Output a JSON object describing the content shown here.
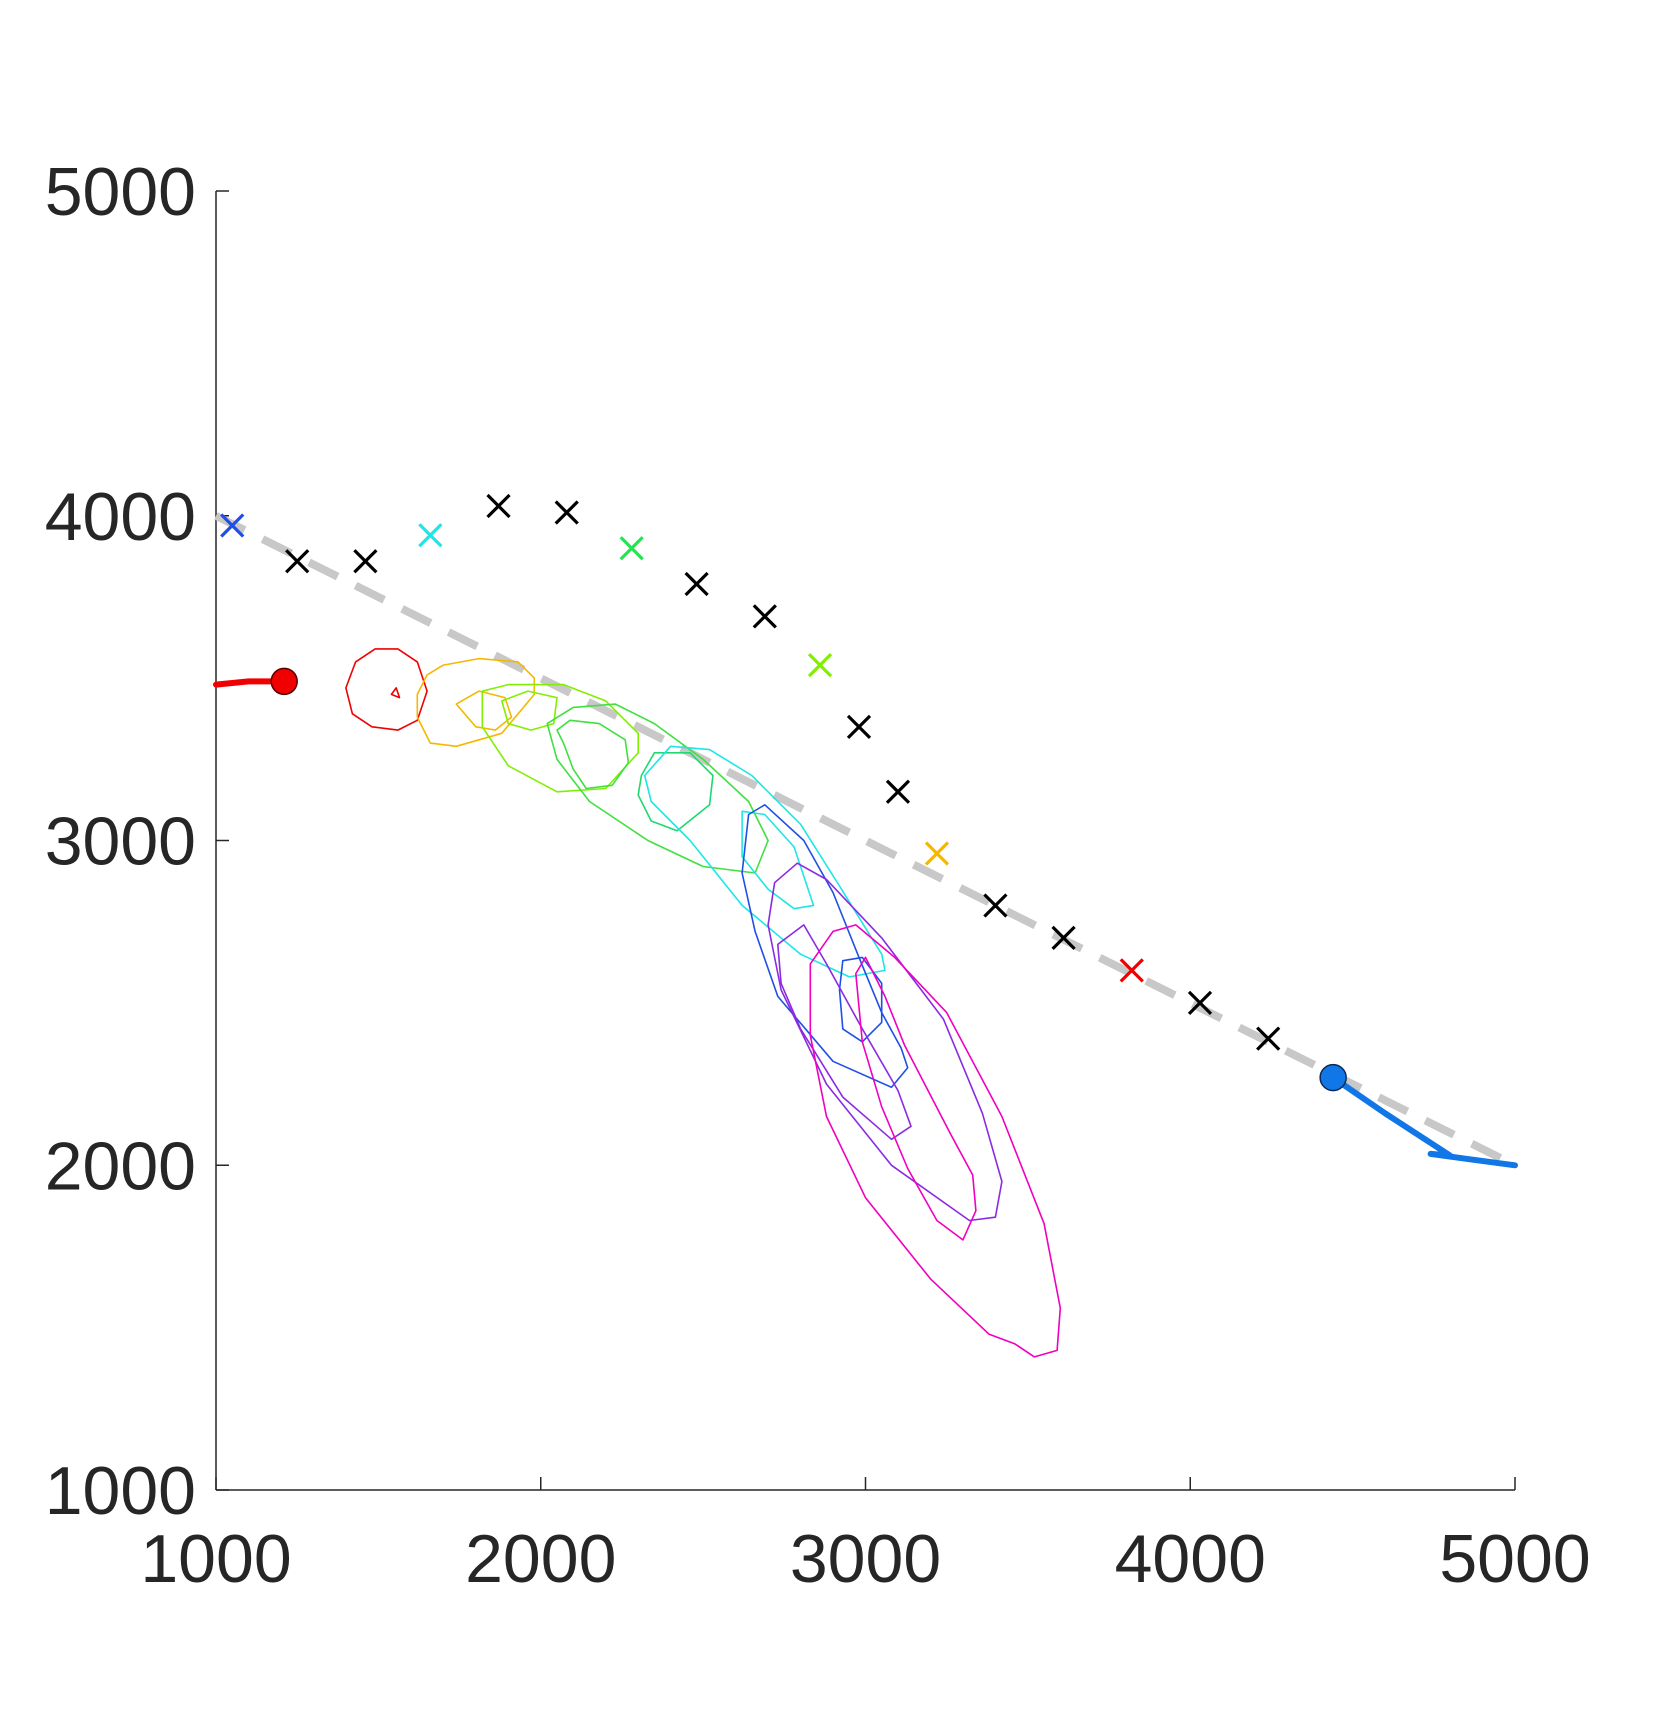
{
  "chart_data": {
    "type": "scatter",
    "title": "",
    "xlabel": "",
    "ylabel": "",
    "xlim": [
      1000,
      5000
    ],
    "ylim": [
      1000,
      5000
    ],
    "x_ticks": [
      "1000",
      "2000",
      "3000",
      "4000",
      "5000"
    ],
    "y_ticks": [
      "1000",
      "2000",
      "3000",
      "4000",
      "5000"
    ],
    "grid": false,
    "legend": "none",
    "reference_line": {
      "color": "#c8c8c8",
      "style": "dashed",
      "points": [
        [
          1000,
          4000
        ],
        [
          5000,
          2000
        ]
      ]
    },
    "observation_markers": [
      {
        "x": 1050,
        "y": 3970,
        "color": "#1f4fe6"
      },
      {
        "x": 1250,
        "y": 3860,
        "color": "#000000"
      },
      {
        "x": 1460,
        "y": 3860,
        "color": "#000000"
      },
      {
        "x": 1660,
        "y": 3940,
        "color": "#1ee6e6"
      },
      {
        "x": 1870,
        "y": 4030,
        "color": "#000000"
      },
      {
        "x": 2080,
        "y": 4010,
        "color": "#000000"
      },
      {
        "x": 2280,
        "y": 3900,
        "color": "#20e650"
      },
      {
        "x": 2480,
        "y": 3790,
        "color": "#000000"
      },
      {
        "x": 2690,
        "y": 3690,
        "color": "#000000"
      },
      {
        "x": 2860,
        "y": 3540,
        "color": "#80f000"
      },
      {
        "x": 2980,
        "y": 3350,
        "color": "#000000"
      },
      {
        "x": 3100,
        "y": 3150,
        "color": "#000000"
      },
      {
        "x": 3220,
        "y": 2960,
        "color": "#f5b800"
      },
      {
        "x": 3400,
        "y": 2800,
        "color": "#000000"
      },
      {
        "x": 3610,
        "y": 2700,
        "color": "#000000"
      },
      {
        "x": 3820,
        "y": 2600,
        "color": "#f00000"
      },
      {
        "x": 4030,
        "y": 2500,
        "color": "#000000"
      },
      {
        "x": 4240,
        "y": 2390,
        "color": "#000000"
      }
    ],
    "red_track": {
      "color": "#f00000",
      "points": [
        [
          1000,
          3480
        ],
        [
          1100,
          3490
        ],
        [
          1210,
          3490
        ]
      ],
      "end_marker": [
        1210,
        3490
      ]
    },
    "blue_track": {
      "color": "#1177e6",
      "points": [
        [
          4440,
          2270
        ],
        [
          4600,
          2160
        ],
        [
          4800,
          2030
        ],
        [
          4740,
          2035
        ],
        [
          4850,
          2020
        ],
        [
          5000,
          2000
        ]
      ],
      "start_marker": [
        4440,
        2270
      ]
    },
    "contours": [
      {
        "color": "#f00000",
        "outer": [
          [
            1430,
            3550
          ],
          [
            1490,
            3590
          ],
          [
            1560,
            3590
          ],
          [
            1620,
            3550
          ],
          [
            1650,
            3460
          ],
          [
            1620,
            3370
          ],
          [
            1560,
            3340
          ],
          [
            1480,
            3350
          ],
          [
            1420,
            3390
          ],
          [
            1400,
            3470
          ]
        ],
        "inner": [
          [
            1540,
            3450
          ],
          [
            1555,
            3470
          ],
          [
            1565,
            3440
          ]
        ]
      },
      {
        "color": "#f5b800",
        "outer": [
          [
            1620,
            3450
          ],
          [
            1650,
            3510
          ],
          [
            1700,
            3540
          ],
          [
            1810,
            3560
          ],
          [
            1930,
            3550
          ],
          [
            1980,
            3500
          ],
          [
            1980,
            3450
          ],
          [
            1880,
            3330
          ],
          [
            1740,
            3290
          ],
          [
            1660,
            3300
          ],
          [
            1620,
            3380
          ]
        ],
        "inner": [
          [
            1740,
            3420
          ],
          [
            1810,
            3460
          ],
          [
            1890,
            3440
          ],
          [
            1910,
            3380
          ],
          [
            1860,
            3340
          ],
          [
            1800,
            3350
          ]
        ]
      },
      {
        "color": "#80f000",
        "outer": [
          [
            1820,
            3460
          ],
          [
            1900,
            3480
          ],
          [
            2070,
            3480
          ],
          [
            2200,
            3430
          ],
          [
            2300,
            3330
          ],
          [
            2300,
            3270
          ],
          [
            2200,
            3160
          ],
          [
            2050,
            3150
          ],
          [
            1900,
            3230
          ],
          [
            1820,
            3350
          ]
        ],
        "inner": [
          [
            1880,
            3430
          ],
          [
            1960,
            3460
          ],
          [
            2050,
            3440
          ],
          [
            2040,
            3360
          ],
          [
            1970,
            3340
          ],
          [
            1900,
            3360
          ]
        ]
      },
      {
        "color": "#40e040",
        "outer": [
          [
            2020,
            3360
          ],
          [
            2100,
            3410
          ],
          [
            2230,
            3420
          ],
          [
            2350,
            3360
          ],
          [
            2500,
            3250
          ],
          [
            2640,
            3120
          ],
          [
            2700,
            3000
          ],
          [
            2660,
            2900
          ],
          [
            2500,
            2920
          ],
          [
            2330,
            3000
          ],
          [
            2150,
            3120
          ],
          [
            2050,
            3250
          ]
        ],
        "inner": [
          [
            2050,
            3340
          ],
          [
            2090,
            3370
          ],
          [
            2180,
            3360
          ],
          [
            2260,
            3310
          ],
          [
            2270,
            3240
          ],
          [
            2220,
            3170
          ],
          [
            2140,
            3160
          ],
          [
            2100,
            3220
          ],
          [
            2070,
            3300
          ]
        ]
      },
      {
        "color": "#20d870",
        "outer": [
          [
            2310,
            3200
          ],
          [
            2350,
            3270
          ],
          [
            2460,
            3270
          ],
          [
            2530,
            3200
          ],
          [
            2520,
            3110
          ],
          [
            2420,
            3030
          ],
          [
            2340,
            3060
          ],
          [
            2300,
            3140
          ]
        ],
        "inner": []
      },
      {
        "color": "#1ee6e6",
        "outer": [
          [
            2320,
            3200
          ],
          [
            2400,
            3290
          ],
          [
            2520,
            3280
          ],
          [
            2650,
            3200
          ],
          [
            2800,
            3050
          ],
          [
            2920,
            2860
          ],
          [
            3050,
            2650
          ],
          [
            3060,
            2600
          ],
          [
            2950,
            2580
          ],
          [
            2800,
            2650
          ],
          [
            2620,
            2800
          ],
          [
            2460,
            3000
          ],
          [
            2340,
            3120
          ]
        ],
        "inner": [
          [
            2620,
            3090
          ],
          [
            2690,
            3080
          ],
          [
            2780,
            2980
          ],
          [
            2840,
            2800
          ],
          [
            2780,
            2790
          ],
          [
            2700,
            2850
          ],
          [
            2620,
            2950
          ]
        ]
      },
      {
        "color": "#1f4fe6",
        "outer": [
          [
            2640,
            3080
          ],
          [
            2690,
            3110
          ],
          [
            2810,
            3000
          ],
          [
            2900,
            2840
          ],
          [
            2980,
            2640
          ],
          [
            3050,
            2470
          ],
          [
            3110,
            2360
          ],
          [
            3130,
            2300
          ],
          [
            3080,
            2240
          ],
          [
            2900,
            2320
          ],
          [
            2730,
            2520
          ],
          [
            2660,
            2720
          ],
          [
            2620,
            2900
          ]
        ],
        "inner": [
          [
            2930,
            2630
          ],
          [
            2990,
            2640
          ],
          [
            3050,
            2560
          ],
          [
            3050,
            2440
          ],
          [
            2990,
            2380
          ],
          [
            2930,
            2420
          ],
          [
            2920,
            2540
          ]
        ]
      },
      {
        "color": "#8a2be2",
        "outer": [
          [
            2720,
            2870
          ],
          [
            2790,
            2930
          ],
          [
            2880,
            2880
          ],
          [
            3050,
            2700
          ],
          [
            3240,
            2450
          ],
          [
            3360,
            2160
          ],
          [
            3420,
            1950
          ],
          [
            3400,
            1840
          ],
          [
            3320,
            1830
          ],
          [
            3080,
            2000
          ],
          [
            2880,
            2250
          ],
          [
            2740,
            2540
          ],
          [
            2700,
            2740
          ]
        ],
        "inner": [
          [
            2730,
            2680
          ],
          [
            2810,
            2740
          ],
          [
            2880,
            2620
          ],
          [
            2990,
            2420
          ],
          [
            3100,
            2230
          ],
          [
            3140,
            2120
          ],
          [
            3080,
            2080
          ],
          [
            2930,
            2210
          ],
          [
            2800,
            2420
          ],
          [
            2740,
            2560
          ]
        ]
      },
      {
        "color": "#f000c0",
        "outer": [
          [
            2830,
            2620
          ],
          [
            2900,
            2720
          ],
          [
            2970,
            2740
          ],
          [
            3090,
            2640
          ],
          [
            3250,
            2470
          ],
          [
            3420,
            2150
          ],
          [
            3550,
            1820
          ],
          [
            3600,
            1560
          ],
          [
            3590,
            1430
          ],
          [
            3520,
            1410
          ],
          [
            3460,
            1450
          ],
          [
            3380,
            1480
          ],
          [
            3200,
            1650
          ],
          [
            3000,
            1900
          ],
          [
            2880,
            2150
          ],
          [
            2830,
            2400
          ]
        ],
        "inner": [
          [
            2970,
            2590
          ],
          [
            3000,
            2640
          ],
          [
            3060,
            2520
          ],
          [
            3120,
            2370
          ],
          [
            3260,
            2100
          ],
          [
            3330,
            1970
          ],
          [
            3340,
            1860
          ],
          [
            3300,
            1770
          ],
          [
            3220,
            1830
          ],
          [
            3130,
            1990
          ],
          [
            3050,
            2180
          ],
          [
            2990,
            2380
          ]
        ]
      }
    ]
  }
}
